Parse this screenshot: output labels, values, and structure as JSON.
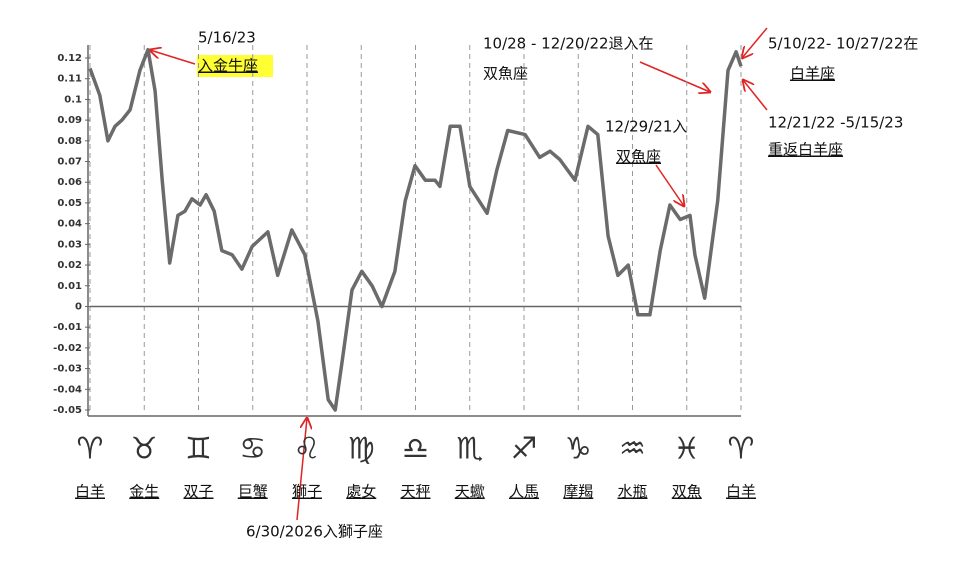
{
  "chart_data": {
    "type": "line",
    "categories": [
      "白羊",
      "金生",
      "双子",
      "巨蟹",
      "獅子",
      "處女",
      "天秤",
      "天蠍",
      "人馬",
      "摩羯",
      "水瓶",
      "双魚",
      "白羊"
    ],
    "symbols": [
      "♈",
      "♉",
      "♊",
      "♋",
      "♌",
      "♍",
      "♎",
      "♏",
      "♐",
      "♑",
      "♒",
      "♓",
      "♈"
    ],
    "x": [
      0,
      0.18,
      0.33,
      0.46,
      0.59,
      0.74,
      0.92,
      1.07,
      1.2,
      1.33,
      1.47,
      1.62,
      1.75,
      1.88,
      2.03,
      2.14,
      2.29,
      2.43,
      2.62,
      2.8,
      2.99,
      3.28,
      3.46,
      3.72,
      3.96,
      4.2,
      4.39,
      4.52,
      4.65,
      4.83,
      5.01,
      5.2,
      5.38,
      5.62,
      5.81,
      5.99,
      6.18,
      6.36,
      6.45,
      6.64,
      6.82,
      7.0,
      7.32,
      7.5,
      7.7,
      8.02,
      8.29,
      8.48,
      8.66,
      8.94,
      9.18,
      9.36,
      9.55,
      9.73,
      9.92,
      10.1,
      10.32,
      10.51,
      10.69,
      10.88,
      11.06,
      11.15,
      11.33,
      11.57,
      11.76,
      11.91,
      12.0
    ],
    "values": [
      0.115,
      0.102,
      0.08,
      0.087,
      0.09,
      0.095,
      0.114,
      0.124,
      0.104,
      0.061,
      0.021,
      0.044,
      0.046,
      0.052,
      0.049,
      0.054,
      0.046,
      0.027,
      0.025,
      0.018,
      0.029,
      0.036,
      0.015,
      0.037,
      0.025,
      -0.007,
      -0.045,
      -0.05,
      -0.026,
      0.008,
      0.017,
      0.01,
      0.0,
      0.017,
      0.051,
      0.068,
      0.061,
      0.061,
      0.058,
      0.087,
      0.087,
      0.058,
      0.045,
      0.066,
      0.085,
      0.083,
      0.072,
      0.075,
      0.071,
      0.061,
      0.087,
      0.083,
      0.034,
      0.015,
      0.02,
      -0.004,
      -0.004,
      0.027,
      0.049,
      0.042,
      0.044,
      0.025,
      0.004,
      0.051,
      0.114,
      0.123,
      0.116
    ],
    "color": "#6b6b6b",
    "xlim": [
      0,
      12
    ],
    "ylim": [
      -0.05,
      0.12
    ],
    "yticks": [
      0.12,
      0.11,
      0.1,
      0.09,
      0.08,
      0.07,
      0.06,
      0.05,
      0.04,
      0.03,
      0.02,
      0.01,
      0,
      -0.01,
      -0.02,
      -0.03,
      -0.04,
      -0.05
    ],
    "annotations": [
      "5/16/23",
      "入金牛座",
      "10/28 - 12/20/22退入在",
      "双魚座",
      "5/10/22- 10/27/22在",
      "白羊座",
      "12/29/21入",
      "双魚座",
      "12/21/22 -5/15/23",
      "重返白羊座",
      "6/30/2026入獅子座"
    ]
  }
}
